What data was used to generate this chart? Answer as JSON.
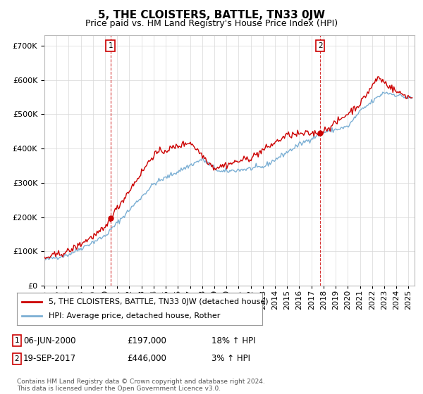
{
  "title": "5, THE CLOISTERS, BATTLE, TN33 0JW",
  "subtitle": "Price paid vs. HM Land Registry's House Price Index (HPI)",
  "ylim": [
    0,
    730000
  ],
  "xlim_start": 1995.0,
  "xlim_end": 2025.5,
  "sale1_x": 2000.44,
  "sale1_y": 197000,
  "sale1_label": "1",
  "sale2_x": 2017.72,
  "sale2_y": 446000,
  "sale2_label": "2",
  "line_color_property": "#cc0000",
  "line_color_hpi": "#7bafd4",
  "background_color": "#ffffff",
  "grid_color": "#d8d8d8",
  "legend_text_property": "5, THE CLOISTERS, BATTLE, TN33 0JW (detached house)",
  "legend_text_hpi": "HPI: Average price, detached house, Rother",
  "annotation1_date": "06-JUN-2000",
  "annotation1_price": "£197,000",
  "annotation1_hpi": "18% ↑ HPI",
  "annotation2_date": "19-SEP-2017",
  "annotation2_price": "£446,000",
  "annotation2_hpi": "3% ↑ HPI",
  "footer_text": "Contains HM Land Registry data © Crown copyright and database right 2024.\nThis data is licensed under the Open Government Licence v3.0.",
  "title_fontsize": 11,
  "subtitle_fontsize": 9,
  "tick_fontsize": 8,
  "legend_fontsize": 8,
  "annot_fontsize": 8.5
}
